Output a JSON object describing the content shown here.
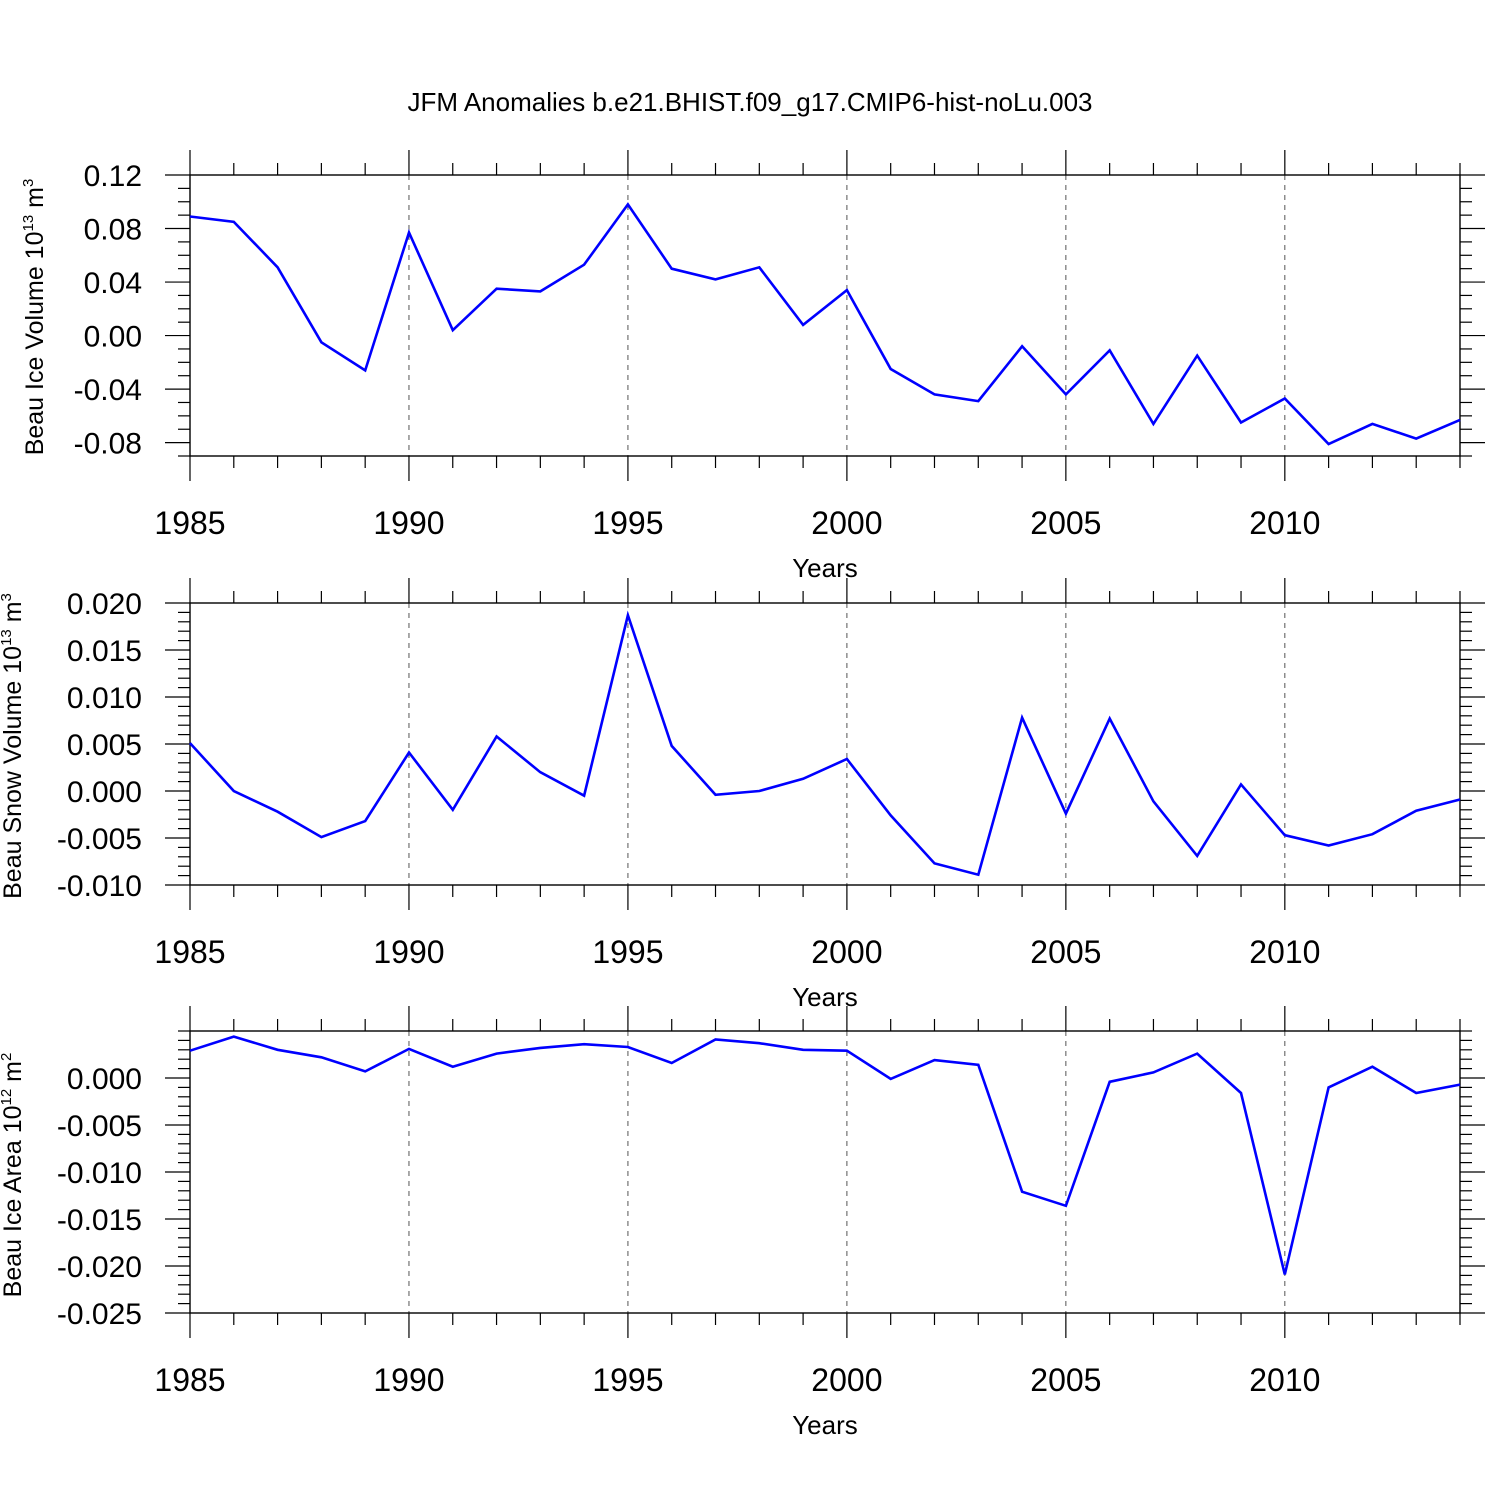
{
  "title": "JFM Anomalies b.e21.BHIST.f09_g17.CMIP6-hist-noLu.003",
  "line_color": "#0000ff",
  "chart_data": [
    {
      "type": "line",
      "name": "ice-volume",
      "ylabel": "Beau Ice Volume 10",
      "ylabel_exp": "13",
      "ylabel_unit": " m",
      "ylabel_unit_exp": "3",
      "xlabel": "Years",
      "xlim": [
        1985,
        2014
      ],
      "ylim": [
        -0.09,
        0.12
      ],
      "yticks": [
        0.12,
        0.08,
        0.04,
        0.0,
        -0.04,
        -0.08
      ],
      "ytick_labels": [
        "0.12",
        "0.08",
        "0.04",
        "0.00",
        "-0.04",
        "-0.08"
      ],
      "yminor_step": 0.01,
      "xticks": [
        1985,
        1990,
        1995,
        2000,
        2005,
        2010
      ],
      "xtick_labels": [
        "1985",
        "1990",
        "1995",
        "2000",
        "2005",
        "2010"
      ],
      "grid_x": [
        1990,
        1995,
        2000,
        2005,
        2010
      ],
      "x": [
        1985,
        1986,
        1987,
        1988,
        1989,
        1990,
        1991,
        1992,
        1993,
        1994,
        1995,
        1996,
        1997,
        1998,
        1999,
        2000,
        2001,
        2002,
        2003,
        2004,
        2005,
        2006,
        2007,
        2008,
        2009,
        2010,
        2011,
        2012,
        2013,
        2014
      ],
      "values": [
        0.089,
        0.085,
        0.051,
        -0.005,
        -0.026,
        0.077,
        0.004,
        0.035,
        0.033,
        0.053,
        0.098,
        0.05,
        0.042,
        0.051,
        0.008,
        0.034,
        -0.025,
        -0.044,
        -0.049,
        -0.008,
        -0.044,
        -0.011,
        -0.066,
        -0.015,
        -0.065,
        -0.047,
        -0.081,
        -0.066,
        -0.077,
        -0.063
      ]
    },
    {
      "type": "line",
      "name": "snow-volume",
      "ylabel": "Beau Snow Volume 10",
      "ylabel_exp": "13",
      "ylabel_unit": " m",
      "ylabel_unit_exp": "3",
      "xlabel": "Years",
      "xlim": [
        1985,
        2014
      ],
      "ylim": [
        -0.01,
        0.02
      ],
      "yticks": [
        0.02,
        0.015,
        0.01,
        0.005,
        0.0,
        -0.005,
        -0.01
      ],
      "ytick_labels": [
        "0.020",
        "0.015",
        "0.010",
        "0.005",
        "0.000",
        "-0.005",
        "-0.010"
      ],
      "yminor_step": 0.001,
      "xticks": [
        1985,
        1990,
        1995,
        2000,
        2005,
        2010
      ],
      "xtick_labels": [
        "1985",
        "1990",
        "1995",
        "2000",
        "2005",
        "2010"
      ],
      "grid_x": [
        1990,
        1995,
        2000,
        2005,
        2010
      ],
      "x": [
        1985,
        1986,
        1987,
        1988,
        1989,
        1990,
        1991,
        1992,
        1993,
        1994,
        1995,
        1996,
        1997,
        1998,
        1999,
        2000,
        2001,
        2002,
        2003,
        2004,
        2005,
        2006,
        2007,
        2008,
        2009,
        2010,
        2011,
        2012,
        2013,
        2014
      ],
      "values": [
        0.0051,
        0.0,
        -0.0022,
        -0.0049,
        -0.0032,
        0.0041,
        -0.002,
        0.0058,
        0.002,
        -0.0005,
        0.0187,
        0.0048,
        -0.0004,
        0.0,
        0.0013,
        0.0034,
        -0.0026,
        -0.0077,
        -0.0089,
        0.0078,
        -0.0024,
        0.0077,
        -0.0011,
        -0.0069,
        0.0007,
        -0.0047,
        -0.0058,
        -0.0046,
        -0.0021,
        -0.0009
      ]
    },
    {
      "type": "line",
      "name": "ice-area",
      "ylabel": "Beau Ice Area 10",
      "ylabel_exp": "12",
      "ylabel_unit": " m",
      "ylabel_unit_exp": "2",
      "xlabel": "Years",
      "xlim": [
        1985,
        2014
      ],
      "ylim": [
        -0.025,
        0.005
      ],
      "yticks": [
        0.0,
        -0.005,
        -0.01,
        -0.015,
        -0.02,
        -0.025
      ],
      "ytick_labels": [
        "0.000",
        "-0.005",
        "-0.010",
        "-0.015",
        "-0.020",
        "-0.025"
      ],
      "yminor_step": 0.001,
      "xticks": [
        1985,
        1990,
        1995,
        2000,
        2005,
        2010
      ],
      "xtick_labels": [
        "1985",
        "1990",
        "1995",
        "2000",
        "2005",
        "2010"
      ],
      "grid_x": [
        1990,
        1995,
        2000,
        2005,
        2010
      ],
      "x": [
        1985,
        1986,
        1987,
        1988,
        1989,
        1990,
        1991,
        1992,
        1993,
        1994,
        1995,
        1996,
        1997,
        1998,
        1999,
        2000,
        2001,
        2002,
        2003,
        2004,
        2005,
        2006,
        2007,
        2008,
        2009,
        2010,
        2011,
        2012,
        2013,
        2014
      ],
      "values": [
        0.0029,
        0.0044,
        0.003,
        0.0022,
        0.0007,
        0.0031,
        0.0012,
        0.0026,
        0.0032,
        0.0036,
        0.0033,
        0.0016,
        0.0041,
        0.0037,
        0.003,
        0.0029,
        -0.0001,
        0.0019,
        0.0014,
        -0.0121,
        -0.0136,
        -0.0004,
        0.0006,
        0.0026,
        -0.0016,
        -0.0209,
        -0.001,
        0.0012,
        -0.0016,
        -0.0007
      ]
    }
  ]
}
